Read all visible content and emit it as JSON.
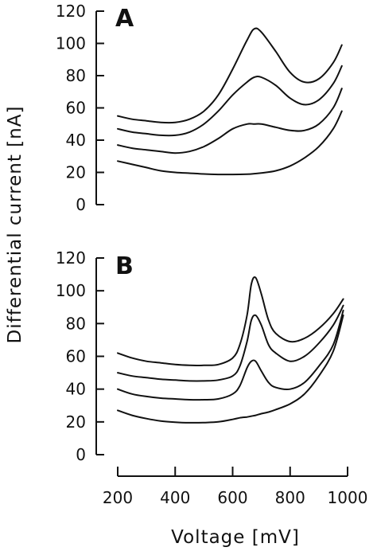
{
  "ylabel": "Differential current [nA]",
  "xlabel": "Voltage [mV]",
  "chart_data": [
    {
      "type": "line",
      "panel": "A",
      "ylim": [
        0,
        120
      ],
      "yticks": [
        0,
        20,
        40,
        60,
        80,
        100,
        120
      ],
      "xlim": [
        200,
        1000
      ],
      "x": [
        200,
        250,
        300,
        350,
        400,
        450,
        500,
        550,
        600,
        650,
        675,
        700,
        750,
        800,
        850,
        900,
        950,
        980
      ],
      "series": [
        {
          "values": [
            55,
            53,
            52,
            51,
            51,
            53,
            58,
            68,
            84,
            102,
            109,
            107,
            95,
            82,
            76,
            78,
            88,
            99
          ]
        },
        {
          "values": [
            47,
            45,
            44,
            43,
            43,
            45,
            50,
            58,
            68,
            76,
            79,
            79,
            74,
            66,
            62,
            65,
            75,
            86
          ]
        },
        {
          "values": [
            37,
            35,
            34,
            33,
            32,
            33,
            36,
            41,
            47,
            50,
            50,
            50,
            48,
            46,
            46,
            50,
            60,
            72
          ]
        },
        {
          "values": [
            27,
            25,
            23,
            21,
            20,
            19.5,
            19,
            18.7,
            18.7,
            18.9,
            19.2,
            19.6,
            21,
            24,
            29,
            36,
            47,
            58
          ]
        }
      ]
    },
    {
      "type": "line",
      "panel": "B",
      "ylim": [
        0,
        120
      ],
      "yticks": [
        0,
        20,
        40,
        60,
        80,
        100,
        120
      ],
      "xlim": [
        200,
        1000
      ],
      "xticks": [
        200,
        400,
        600,
        800,
        1000
      ],
      "x": [
        200,
        250,
        300,
        350,
        400,
        450,
        500,
        550,
        600,
        625,
        650,
        665,
        680,
        700,
        725,
        750,
        800,
        850,
        900,
        950,
        985
      ],
      "series": [
        {
          "values": [
            62,
            59,
            57,
            56,
            55,
            54.5,
            54.5,
            55,
            59,
            67,
            85,
            104,
            108,
            98,
            82,
            74,
            69,
            71,
            77,
            86,
            95
          ]
        },
        {
          "values": [
            50,
            48,
            47,
            46,
            45.5,
            45,
            45,
            45.5,
            48,
            54,
            69,
            82,
            85,
            79,
            67,
            62,
            57,
            60,
            68,
            79,
            91
          ]
        },
        {
          "values": [
            40,
            37,
            35.5,
            34.5,
            34,
            33.5,
            33.5,
            34,
            37,
            42,
            53,
            57,
            57,
            51,
            44,
            41,
            40,
            44,
            54,
            67,
            88
          ]
        },
        {
          "values": [
            27,
            24,
            22,
            20.5,
            19.8,
            19.5,
            19.6,
            20,
            21.5,
            22.5,
            23,
            23.5,
            24,
            25,
            26,
            27.5,
            31,
            37,
            48,
            63,
            85
          ]
        }
      ]
    }
  ]
}
